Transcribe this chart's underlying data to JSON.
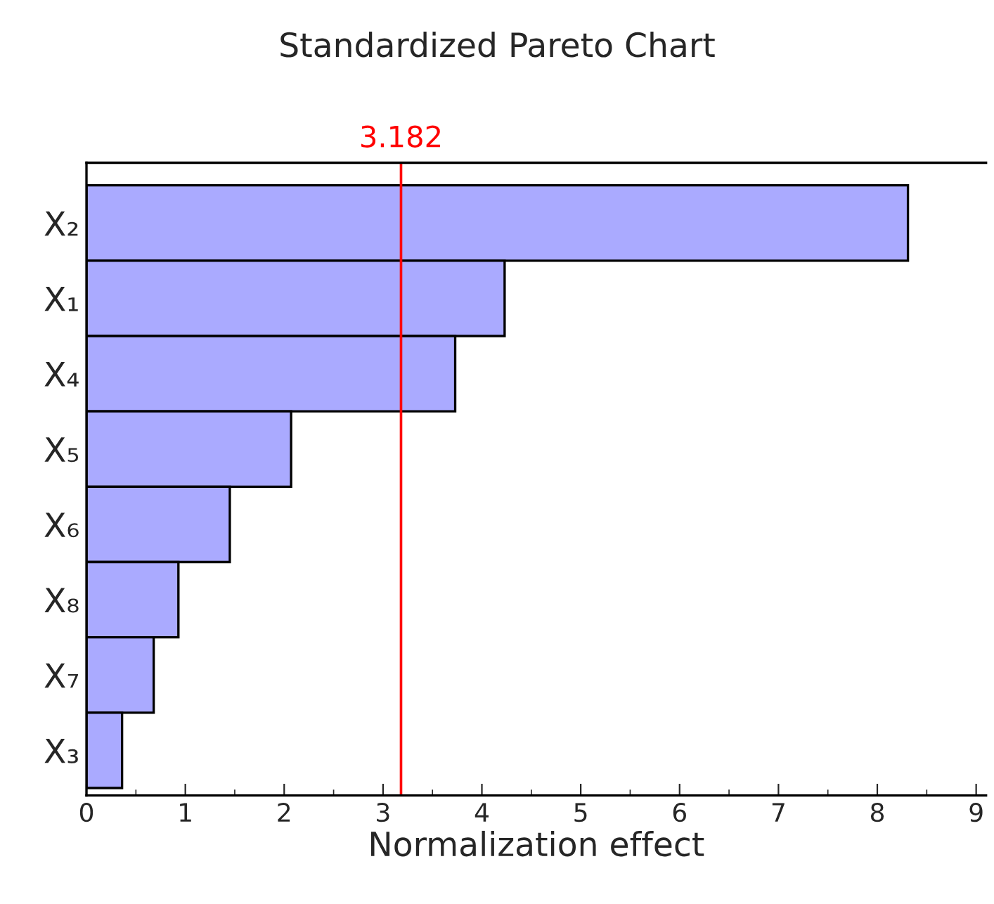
{
  "chart_data": {
    "type": "bar",
    "orientation": "horizontal",
    "title": "Standardized Pareto Chart",
    "xlabel": "Normalization effect",
    "categories": [
      "X₂",
      "X₁",
      "X₄",
      "X₅",
      "X₆",
      "X₈",
      "X₇",
      "X₃"
    ],
    "values": [
      8.31,
      4.23,
      3.73,
      2.07,
      1.45,
      0.93,
      0.68,
      0.36
    ],
    "color": "#aaaaff",
    "xlim": [
      0,
      9.1
    ],
    "xticks": [
      0,
      1,
      2,
      3,
      4,
      5,
      6,
      7,
      8,
      9
    ],
    "grid": false,
    "ref_lines": [
      {
        "axis": "x",
        "value": 3.182,
        "label": "3.182",
        "color": "#ff0000"
      }
    ]
  }
}
